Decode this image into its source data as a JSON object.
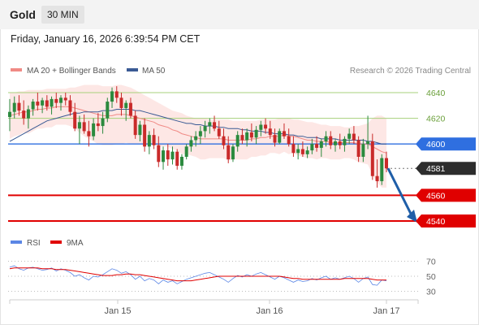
{
  "header": {
    "title": "Gold",
    "timeframe": "30 MIN",
    "datetime": "Friday, January 16, 2026 6:39:54 PM CET"
  },
  "legend": {
    "items": [
      {
        "label": "MA 20 + Bollinger Bands",
        "color": "#f08a85"
      },
      {
        "label": "MA 50",
        "color": "#3a5a94"
      }
    ],
    "credit": "Research © 2026 Trading Central"
  },
  "colors": {
    "up": "#2b8a3e",
    "down": "#c92a2a",
    "support": "#e00000",
    "pivot": "#2f6fe0",
    "last": "#2d2d2d",
    "resistance": "#a7d17b",
    "arrow": "#1f5ea8",
    "bollinger_fill": "#fde3e1",
    "rsi": "#5b86e5",
    "rsi_ma": "#e00000"
  },
  "chart_data": [
    {
      "type": "candlestick",
      "name": "price",
      "xlabel": "",
      "ylabel": "",
      "x_ticks": [
        "Jan 15",
        "Jan 16",
        "Jan 17"
      ],
      "y_ticks": [
        4540,
        4560,
        4600,
        4620,
        4640
      ],
      "y_range": [
        4533,
        4662
      ],
      "levels": [
        {
          "value": 4640,
          "label": "4640",
          "kind": "resistance"
        },
        {
          "value": 4620,
          "label": "4620",
          "kind": "resistance"
        },
        {
          "value": 4600,
          "label": "4600",
          "kind": "pivot"
        },
        {
          "value": 4581,
          "label": "4581",
          "kind": "last"
        },
        {
          "value": 4560,
          "label": "4560",
          "kind": "support"
        },
        {
          "value": 4540,
          "label": "4540",
          "kind": "support"
        }
      ],
      "ohlc": [
        [
          4621,
          4635,
          4610,
          4625
        ],
        [
          4625,
          4637,
          4620,
          4632
        ],
        [
          4632,
          4638,
          4622,
          4626
        ],
        [
          4626,
          4634,
          4615,
          4620
        ],
        [
          4620,
          4630,
          4612,
          4627
        ],
        [
          4627,
          4635,
          4622,
          4633
        ],
        [
          4633,
          4640,
          4626,
          4630
        ],
        [
          4630,
          4636,
          4624,
          4634
        ],
        [
          4634,
          4638,
          4626,
          4629
        ],
        [
          4629,
          4637,
          4623,
          4635
        ],
        [
          4635,
          4640,
          4628,
          4632
        ],
        [
          4632,
          4638,
          4626,
          4636
        ],
        [
          4636,
          4640,
          4630,
          4634
        ],
        [
          4634,
          4638,
          4622,
          4625
        ],
        [
          4625,
          4632,
          4610,
          4612
        ],
        [
          4612,
          4622,
          4600,
          4617
        ],
        [
          4617,
          4623,
          4608,
          4610
        ],
        [
          4610,
          4618,
          4598,
          4606
        ],
        [
          4606,
          4620,
          4603,
          4616
        ],
        [
          4616,
          4624,
          4610,
          4614
        ],
        [
          4614,
          4625,
          4608,
          4620
        ],
        [
          4620,
          4636,
          4617,
          4633
        ],
        [
          4633,
          4644,
          4628,
          4641
        ],
        [
          4641,
          4645,
          4632,
          4636
        ],
        [
          4636,
          4640,
          4622,
          4628
        ],
        [
          4628,
          4634,
          4618,
          4632
        ],
        [
          4632,
          4636,
          4620,
          4622
        ],
        [
          4622,
          4626,
          4604,
          4607
        ],
        [
          4607,
          4618,
          4602,
          4615
        ],
        [
          4615,
          4620,
          4594,
          4598
        ],
        [
          4598,
          4610,
          4592,
          4607
        ],
        [
          4607,
          4612,
          4596,
          4599
        ],
        [
          4599,
          4606,
          4582,
          4586
        ],
        [
          4586,
          4598,
          4580,
          4595
        ],
        [
          4595,
          4600,
          4583,
          4588
        ],
        [
          4588,
          4598,
          4584,
          4594
        ],
        [
          4594,
          4596,
          4580,
          4583
        ],
        [
          4583,
          4592,
          4580,
          4590
        ],
        [
          4590,
          4600,
          4588,
          4598
        ],
        [
          4598,
          4606,
          4594,
          4603
        ],
        [
          4603,
          4610,
          4598,
          4606
        ],
        [
          4606,
          4614,
          4600,
          4610
        ],
        [
          4610,
          4618,
          4605,
          4614
        ],
        [
          4614,
          4620,
          4608,
          4617
        ],
        [
          4617,
          4622,
          4610,
          4612
        ],
        [
          4612,
          4618,
          4604,
          4606
        ],
        [
          4606,
          4612,
          4596,
          4599
        ],
        [
          4599,
          4606,
          4585,
          4588
        ],
        [
          4588,
          4600,
          4586,
          4598
        ],
        [
          4598,
          4610,
          4594,
          4607
        ],
        [
          4607,
          4612,
          4600,
          4603
        ],
        [
          4603,
          4612,
          4598,
          4609
        ],
        [
          4609,
          4616,
          4602,
          4605
        ],
        [
          4605,
          4614,
          4600,
          4611
        ],
        [
          4611,
          4618,
          4606,
          4615
        ],
        [
          4615,
          4620,
          4608,
          4612
        ],
        [
          4612,
          4618,
          4604,
          4607
        ],
        [
          4607,
          4612,
          4598,
          4601
        ],
        [
          4601,
          4612,
          4600,
          4610
        ],
        [
          4610,
          4616,
          4604,
          4606
        ],
        [
          4606,
          4612,
          4598,
          4600
        ],
        [
          4600,
          4606,
          4590,
          4593
        ],
        [
          4593,
          4600,
          4588,
          4596
        ],
        [
          4596,
          4602,
          4590,
          4592
        ],
        [
          4592,
          4598,
          4589,
          4595
        ],
        [
          4595,
          4604,
          4592,
          4600
        ],
        [
          4600,
          4606,
          4594,
          4597
        ],
        [
          4597,
          4604,
          4590,
          4602
        ],
        [
          4602,
          4610,
          4598,
          4606
        ],
        [
          4606,
          4610,
          4596,
          4599
        ],
        [
          4599,
          4604,
          4594,
          4602
        ],
        [
          4602,
          4608,
          4596,
          4599
        ],
        [
          4599,
          4606,
          4594,
          4604
        ],
        [
          4604,
          4612,
          4600,
          4608
        ],
        [
          4608,
          4614,
          4600,
          4603
        ],
        [
          4603,
          4606,
          4586,
          4590
        ],
        [
          4590,
          4604,
          4586,
          4600
        ],
        [
          4600,
          4622,
          4596,
          4602
        ],
        [
          4602,
          4608,
          4572,
          4575
        ],
        [
          4575,
          4588,
          4566,
          4571
        ],
        [
          4571,
          4592,
          4568,
          4589
        ],
        [
          4589,
          4594,
          4578,
          4581
        ]
      ],
      "ma20": [
        4622,
        4623,
        4624,
        4625,
        4625,
        4626,
        4627,
        4627,
        4628,
        4628,
        4629,
        4629,
        4629,
        4629,
        4628,
        4627,
        4626,
        4625,
        4624,
        4623,
        4622,
        4622,
        4622,
        4623,
        4623,
        4623,
        4622,
        4621,
        4620,
        4619,
        4618,
        4617,
        4615,
        4614,
        4613,
        4611,
        4610,
        4608,
        4607,
        4606,
        4605,
        4604,
        4604,
        4604,
        4604,
        4604,
        4604,
        4603,
        4603,
        4603,
        4603,
        4603,
        4604,
        4604,
        4605,
        4605,
        4606,
        4606,
        4606,
        4607,
        4606,
        4606,
        4605,
        4604,
        4603,
        4603,
        4602,
        4602,
        4602,
        4601,
        4601,
        4601,
        4601,
        4601,
        4601,
        4600,
        4600,
        4600,
        4598,
        4596,
        4594,
        4593
      ],
      "bb_upper": [
        4640,
        4640,
        4641,
        4641,
        4642,
        4642,
        4642,
        4642,
        4643,
        4643,
        4643,
        4643,
        4643,
        4644,
        4644,
        4645,
        4646,
        4646,
        4646,
        4646,
        4645,
        4645,
        4645,
        4646,
        4646,
        4645,
        4644,
        4642,
        4640,
        4638,
        4636,
        4634,
        4632,
        4630,
        4628,
        4626,
        4625,
        4624,
        4622,
        4621,
        4620,
        4620,
        4620,
        4619,
        4619,
        4619,
        4619,
        4619,
        4618,
        4618,
        4618,
        4618,
        4618,
        4618,
        4619,
        4619,
        4619,
        4619,
        4620,
        4620,
        4620,
        4619,
        4619,
        4618,
        4617,
        4617,
        4616,
        4615,
        4615,
        4614,
        4614,
        4614,
        4613,
        4613,
        4614,
        4614,
        4615,
        4616,
        4620,
        4622,
        4622,
        4620
      ],
      "bb_lower": [
        4604,
        4606,
        4607,
        4609,
        4608,
        4610,
        4612,
        4612,
        4613,
        4613,
        4615,
        4615,
        4615,
        4614,
        4612,
        4609,
        4606,
        4604,
        4602,
        4600,
        4599,
        4599,
        4599,
        4600,
        4600,
        4601,
        4600,
        4600,
        4600,
        4600,
        4600,
        4600,
        4598,
        4598,
        4598,
        4596,
        4595,
        4592,
        4592,
        4591,
        4590,
        4588,
        4588,
        4589,
        4589,
        4589,
        4589,
        4587,
        4588,
        4588,
        4588,
        4588,
        4590,
        4590,
        4591,
        4591,
        4593,
        4593,
        4592,
        4594,
        4592,
        4593,
        4591,
        4590,
        4589,
        4589,
        4588,
        4589,
        4589,
        4588,
        4588,
        4588,
        4589,
        4589,
        4588,
        4586,
        4585,
        4584,
        4576,
        4570,
        4566,
        4566
      ],
      "ma50": [
        4602,
        4604,
        4606,
        4608,
        4610,
        4612,
        4614,
        4616,
        4618,
        4619,
        4620,
        4621,
        4622,
        4623,
        4624,
        4624,
        4625,
        4625,
        4625,
        4625,
        4626,
        4626,
        4626,
        4627,
        4627,
        4627,
        4627,
        4626,
        4626,
        4625,
        4624,
        4623,
        4622,
        4621,
        4620,
        4619,
        4618,
        4617,
        4616,
        4616,
        4615,
        4615,
        4614,
        4614,
        4614,
        4613,
        4613,
        4612,
        4612,
        4612,
        4611,
        4611,
        4610,
        4610,
        4610,
        4609,
        4609,
        4608,
        4608,
        4608,
        4607,
        4607,
        4606,
        4606,
        4605,
        4605,
        4605,
        4604,
        4604,
        4604,
        4604,
        4603,
        4603,
        4603,
        4603,
        4603,
        4603,
        4602,
        4602,
        4601,
        4600,
        4600
      ]
    },
    {
      "type": "line",
      "name": "rsi",
      "legend": [
        "RSI",
        "9MA"
      ],
      "y_ticks": [
        30,
        50,
        70
      ],
      "y_range": [
        25,
        78
      ],
      "rsi": [
        62,
        64,
        60,
        58,
        61,
        62,
        60,
        58,
        59,
        61,
        57,
        60,
        58,
        55,
        50,
        52,
        48,
        45,
        50,
        49,
        52,
        56,
        60,
        58,
        54,
        56,
        52,
        46,
        50,
        44,
        47,
        45,
        40,
        45,
        42,
        44,
        40,
        43,
        46,
        48,
        50,
        52,
        54,
        55,
        52,
        49,
        46,
        42,
        47,
        51,
        49,
        52,
        50,
        53,
        55,
        52,
        49,
        46,
        50,
        48,
        45,
        42,
        45,
        43,
        44,
        47,
        45,
        48,
        50,
        46,
        48,
        46,
        48,
        50,
        47,
        42,
        47,
        49,
        39,
        38,
        45,
        44
      ],
      "rsi_ma": [
        60,
        61,
        61,
        61,
        61,
        61,
        61,
        60,
        60,
        60,
        59,
        59,
        59,
        58,
        57,
        56,
        55,
        54,
        53,
        52,
        51,
        51,
        51,
        52,
        52,
        53,
        53,
        52,
        52,
        51,
        50,
        49,
        48,
        47,
        46,
        45,
        44,
        44,
        44,
        44,
        45,
        46,
        47,
        48,
        49,
        50,
        50,
        50,
        50,
        50,
        50,
        50,
        50,
        50,
        50,
        50,
        50,
        50,
        50,
        49,
        48,
        47,
        47,
        46,
        46,
        46,
        46,
        46,
        46,
        46,
        46,
        46,
        47,
        47,
        47,
        47,
        47,
        47,
        46,
        45,
        45,
        45
      ]
    }
  ]
}
